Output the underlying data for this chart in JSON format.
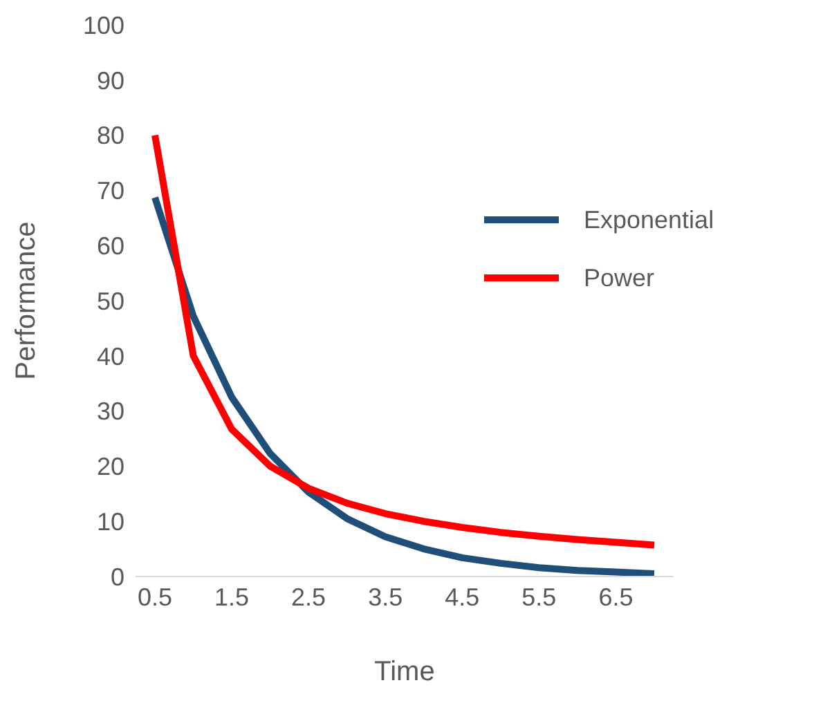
{
  "chart_data": {
    "type": "line",
    "xlabel": "Time",
    "ylabel": "Performance",
    "categories": [
      "0.5",
      null,
      "1.5",
      null,
      "2.5",
      null,
      "3.5",
      null,
      "4.5",
      null,
      "5.5",
      null,
      "6.5",
      null
    ],
    "series": [
      {
        "name": "Exponential",
        "color": "#1f4e79",
        "values": [
          68.7,
          47.2,
          32.5,
          22.3,
          15.3,
          10.5,
          7.2,
          5.0,
          3.4,
          2.4,
          1.6,
          1.1,
          0.8,
          0.5
        ]
      },
      {
        "name": "Power",
        "color": "#ff0000",
        "values": [
          80,
          40,
          26.7,
          20,
          16,
          13.3,
          11.4,
          10,
          8.9,
          8,
          7.3,
          6.7,
          6.2,
          5.7
        ]
      }
    ],
    "ylim": [
      0,
      100
    ],
    "yticks": [
      0,
      10,
      20,
      30,
      40,
      50,
      60,
      70,
      80,
      90,
      100
    ],
    "grid": false,
    "legend": "right",
    "marker": "none",
    "line_style": "solid"
  }
}
